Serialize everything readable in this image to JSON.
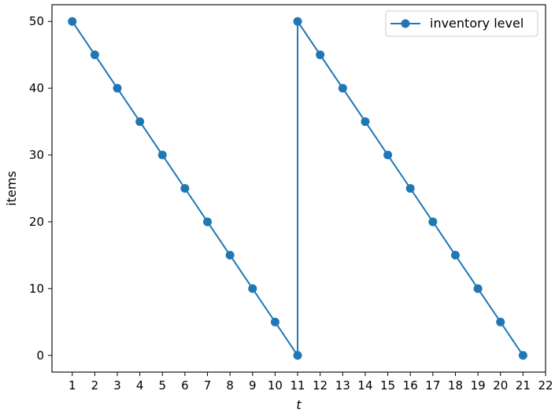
{
  "chart_data": {
    "type": "line",
    "title": "",
    "xlabel": "t",
    "ylabel": "items",
    "xlim": [
      0.1,
      22
    ],
    "ylim": [
      -2.5,
      52.5
    ],
    "x_ticks": [
      1,
      2,
      3,
      4,
      5,
      6,
      7,
      8,
      9,
      10,
      11,
      12,
      13,
      14,
      15,
      16,
      17,
      18,
      19,
      20,
      21,
      22
    ],
    "y_ticks": [
      0,
      10,
      20,
      30,
      40,
      50
    ],
    "grid": false,
    "legend_position": "top-right",
    "series": [
      {
        "name": "inventory level",
        "color": "#1f77b4",
        "marker": "circle",
        "points": [
          [
            1,
            50
          ],
          [
            2,
            45
          ],
          [
            3,
            40
          ],
          [
            4,
            35
          ],
          [
            5,
            30
          ],
          [
            6,
            25
          ],
          [
            7,
            20
          ],
          [
            8,
            15
          ],
          [
            9,
            10
          ],
          [
            10,
            5
          ],
          [
            11,
            0
          ],
          [
            11,
            50
          ],
          [
            12,
            45
          ],
          [
            13,
            40
          ],
          [
            14,
            35
          ],
          [
            15,
            30
          ],
          [
            16,
            25
          ],
          [
            17,
            20
          ],
          [
            18,
            15
          ],
          [
            19,
            10
          ],
          [
            20,
            5
          ],
          [
            21,
            0
          ]
        ]
      }
    ]
  }
}
